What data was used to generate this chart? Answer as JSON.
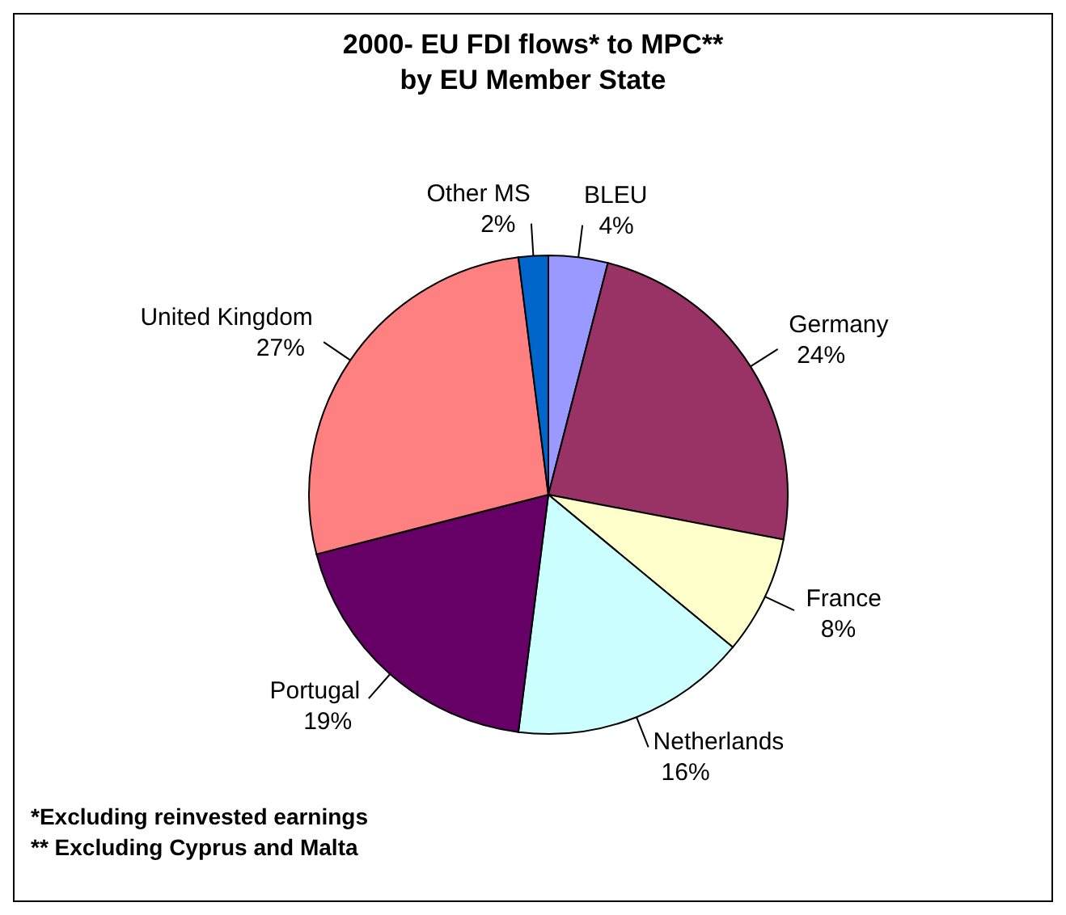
{
  "chart_data": {
    "type": "pie",
    "title": "2000- EU FDI flows* to MPC**\nby EU Member State",
    "categories": [
      "BLEU",
      "Germany",
      "France",
      "Netherlands",
      "Portugal",
      "United Kingdom",
      "Other MS"
    ],
    "values": [
      4,
      24,
      8,
      16,
      19,
      27,
      2
    ],
    "value_labels": [
      "4%",
      "24%",
      "8%",
      "16%",
      "19%",
      "27%",
      "2%"
    ],
    "colors": [
      "#9999ff",
      "#993366",
      "#ffffcc",
      "#ccffff",
      "#660066",
      "#ff8080",
      "#0066cc"
    ],
    "legend": false,
    "annotations": [
      "*Excluding reinvested earnings",
      "** Excluding Cyprus and Malta"
    ]
  }
}
